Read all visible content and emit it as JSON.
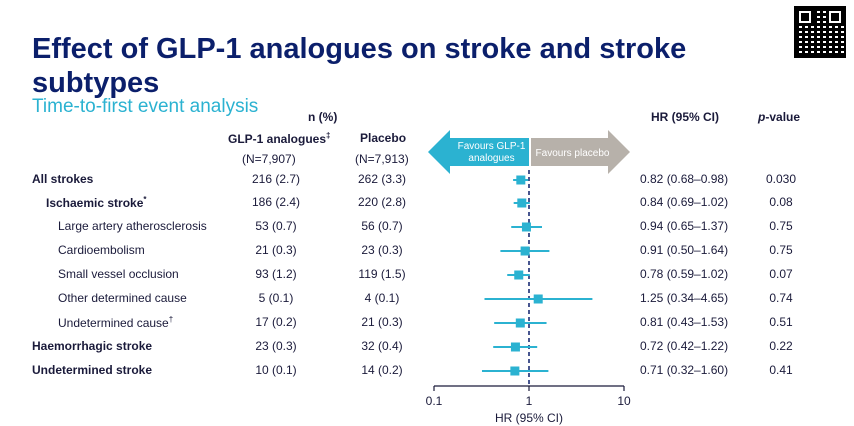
{
  "title": "Effect of GLP-1 analogues on stroke and stroke subtypes",
  "subtitle": "Time-to-first event analysis",
  "header": {
    "n_pct": "n (%)",
    "glp1": "GLP-1 analogues",
    "glp1_mark": "‡",
    "placebo": "Placebo",
    "glp1_n": "(N=7,907)",
    "placebo_n": "(N=7,913)",
    "hr": "HR (95% CI)",
    "pvalue_italic": "p",
    "pvalue_rest": "-value"
  },
  "arrows": {
    "left": "Favours GLP-1 analogues",
    "left_line1": "Favours GLP-1",
    "left_line2": "analogues",
    "right": "Favours placebo",
    "left_color": "#2bb2d1",
    "right_color": "#b7b1aa"
  },
  "rows": [
    {
      "label": "All strokes",
      "bold": true,
      "indent": 0,
      "glp1": "216 (2.7)",
      "placebo": "262 (3.3)",
      "hr_text": "0.82 (0.68–0.98)",
      "p": "0.030"
    },
    {
      "label": "Ischaemic stroke",
      "mark": "*",
      "bold": true,
      "indent": 1,
      "glp1": "186 (2.4)",
      "placebo": "220 (2.8)",
      "hr_text": "0.84 (0.69–1.02)",
      "p": "0.08"
    },
    {
      "label": "Large artery atherosclerosis",
      "bold": false,
      "indent": 2,
      "glp1": "53 (0.7)",
      "placebo": "56 (0.7)",
      "hr_text": "0.94 (0.65–1.37)",
      "p": "0.75"
    },
    {
      "label": "Cardioembolism",
      "bold": false,
      "indent": 2,
      "glp1": "21 (0.3)",
      "placebo": "23 (0.3)",
      "hr_text": "0.91 (0.50–1.64)",
      "p": "0.75"
    },
    {
      "label": "Small vessel occlusion",
      "bold": false,
      "indent": 2,
      "glp1": "93 (1.2)",
      "placebo": "119 (1.5)",
      "hr_text": "0.78 (0.59–1.02)",
      "p": "0.07"
    },
    {
      "label": "Other determined cause",
      "bold": false,
      "indent": 2,
      "glp1": "5 (0.1)",
      "placebo": "4 (0.1)",
      "hr_text": "1.25 (0.34–4.65)",
      "p": "0.74"
    },
    {
      "label": "Undetermined cause",
      "mark": "†",
      "bold": false,
      "indent": 2,
      "glp1": "17 (0.2)",
      "placebo": "21 (0.3)",
      "hr_text": "0.81 (0.43–1.53)",
      "p": "0.51"
    },
    {
      "label": "Haemorrhagic stroke",
      "bold": true,
      "indent": 0,
      "glp1": "23 (0.3)",
      "placebo": "32 (0.4)",
      "hr_text": "0.72 (0.42–1.22)",
      "p": "0.22"
    },
    {
      "label": "Undetermined stroke",
      "bold": true,
      "indent": 0,
      "glp1": "10 (0.1)",
      "placebo": "14 (0.2)",
      "hr_text": "0.71 (0.32–1.60)",
      "p": "0.41"
    }
  ],
  "chart_data": {
    "type": "scatter",
    "subtype": "forest",
    "xscale": "log",
    "xlim": [
      0.1,
      10
    ],
    "xticks": [
      0.1,
      1,
      10
    ],
    "xtick_labels": [
      "0.1",
      "1",
      "10"
    ],
    "xlabel": "HR (95% CI)",
    "reference_line": 1,
    "color": "#2bb2d1",
    "categories": [
      "All strokes",
      "Ischaemic stroke",
      "Large artery atherosclerosis",
      "Cardioembolism",
      "Small vessel occlusion",
      "Other determined cause",
      "Undetermined cause",
      "Haemorrhagic stroke",
      "Undetermined stroke"
    ],
    "hr": [
      0.82,
      0.84,
      0.94,
      0.91,
      0.78,
      1.25,
      0.81,
      0.72,
      0.71
    ],
    "lower": [
      0.68,
      0.69,
      0.65,
      0.5,
      0.59,
      0.34,
      0.43,
      0.42,
      0.32
    ],
    "upper": [
      0.98,
      1.02,
      1.37,
      1.64,
      1.02,
      4.65,
      1.53,
      1.22,
      1.6
    ]
  }
}
